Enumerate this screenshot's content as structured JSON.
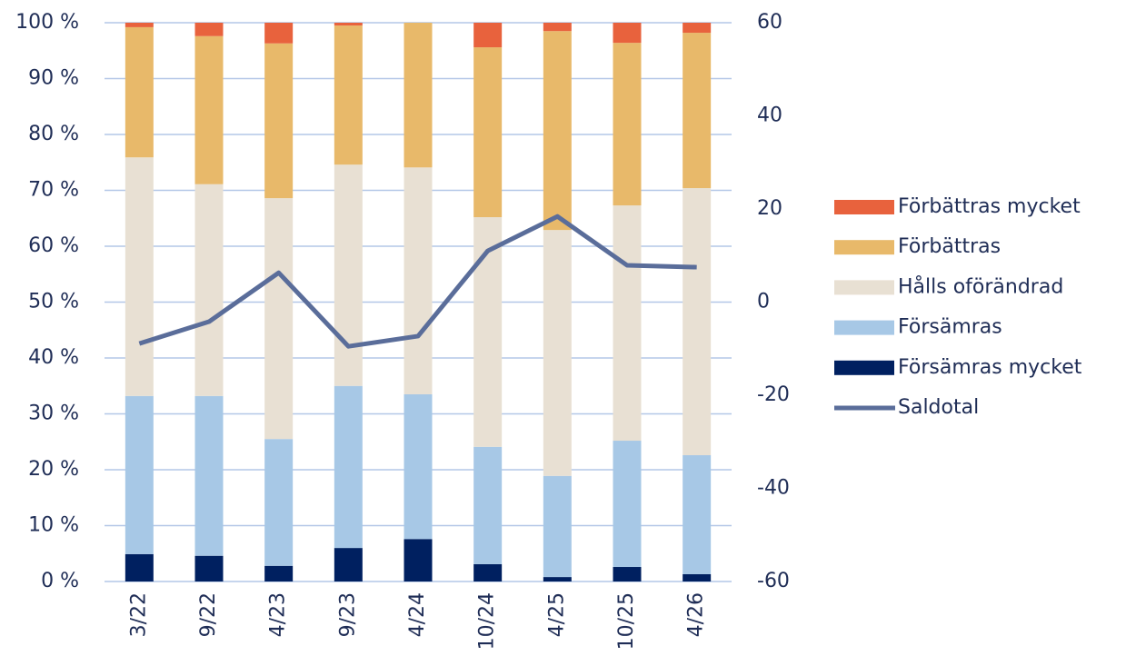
{
  "chart_data": {
    "type": "bar",
    "stacked": true,
    "categories": [
      "3/22",
      "9/22",
      "4/23",
      "9/23",
      "4/24",
      "10/24",
      "4/25",
      "10/25",
      "4/26"
    ],
    "series": [
      {
        "name": "Försämras mycket",
        "color": "#002060",
        "values": [
          4.9,
          4.6,
          2.8,
          6.0,
          7.6,
          3.1,
          0.8,
          2.6,
          1.3
        ]
      },
      {
        "name": "Försämras",
        "color": "#a7c8e6",
        "values": [
          28.3,
          28.6,
          22.7,
          29.0,
          25.9,
          21.0,
          18.1,
          22.6,
          21.3
        ]
      },
      {
        "name": "Hålls oförändrad",
        "color": "#e8e0d3",
        "values": [
          42.7,
          37.9,
          43.1,
          39.6,
          40.6,
          41.1,
          44.0,
          42.1,
          47.8
        ]
      },
      {
        "name": "Förbättras",
        "color": "#e8b96a",
        "values": [
          23.3,
          26.5,
          27.7,
          24.9,
          25.9,
          30.4,
          35.6,
          29.1,
          27.8
        ]
      },
      {
        "name": "Förbättras mycket",
        "color": "#e8623d",
        "values": [
          0.8,
          2.4,
          3.7,
          0.5,
          0,
          4.4,
          1.5,
          3.6,
          1.8
        ]
      },
      {
        "name": "Saldotal",
        "color": "#5a6d9a",
        "type": "line",
        "axis": "y2",
        "values": [
          -8.9,
          -4.2,
          6.3,
          -9.5,
          -7.3,
          11.0,
          18.4,
          7.9,
          7.5
        ]
      }
    ],
    "ylim": [
      0,
      100
    ],
    "yticks": [
      {
        "value": 0,
        "label": "0 %"
      },
      {
        "value": 10,
        "label": "10 %"
      },
      {
        "value": 20,
        "label": "20 %"
      },
      {
        "value": 30,
        "label": "30 %"
      },
      {
        "value": 40,
        "label": "40 %"
      },
      {
        "value": 50,
        "label": "50 %"
      },
      {
        "value": 60,
        "label": "60 %"
      },
      {
        "value": 70,
        "label": "70 %"
      },
      {
        "value": 80,
        "label": "80 %"
      },
      {
        "value": 90,
        "label": "90 %"
      },
      {
        "value": 100,
        "label": "100 %"
      }
    ],
    "y2lim": [
      -60,
      60
    ],
    "y2ticks": [
      -60,
      -40,
      -20,
      0,
      20,
      40,
      60
    ],
    "grid": true,
    "legend": "right"
  }
}
